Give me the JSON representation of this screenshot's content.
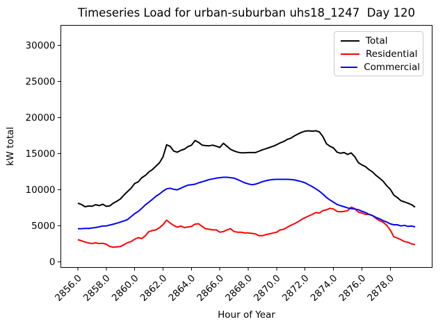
{
  "chart_data": {
    "type": "line",
    "title": "Timeseries Load for urban-suburban uhs18_1247  Day 120",
    "xlabel": "Hour of Year",
    "ylabel": "kW total",
    "grid": false,
    "legend_position": "upper right",
    "xlim": [
      2854.8,
      2880.95
    ],
    "ylim": [
      -750,
      32800
    ],
    "x_ticks": [
      2856,
      2858,
      2860,
      2862,
      2864,
      2866,
      2868,
      2870,
      2872,
      2874,
      2876,
      2878
    ],
    "x_tick_labels": [
      "2856.0",
      "2858.0",
      "2860.0",
      "2862.0",
      "2864.0",
      "2866.0",
      "2868.0",
      "2870.0",
      "2872.0",
      "2874.0",
      "2876.0",
      "2878.0"
    ],
    "y_ticks": [
      0,
      5000,
      10000,
      15000,
      20000,
      25000,
      30000
    ],
    "y_tick_labels": [
      "0",
      "5000",
      "10000",
      "15000",
      "20000",
      "25000",
      "30000"
    ],
    "x": [
      2856.0,
      2856.25,
      2856.5,
      2856.75,
      2857.0,
      2857.25,
      2857.5,
      2857.75,
      2858.0,
      2858.25,
      2858.5,
      2858.75,
      2859.0,
      2859.25,
      2859.5,
      2859.75,
      2860.0,
      2860.25,
      2860.5,
      2860.75,
      2861.0,
      2861.25,
      2861.5,
      2861.75,
      2862.0,
      2862.25,
      2862.5,
      2862.75,
      2863.0,
      2863.25,
      2863.5,
      2863.75,
      2864.0,
      2864.25,
      2864.5,
      2864.75,
      2865.0,
      2865.25,
      2865.5,
      2865.75,
      2866.0,
      2866.25,
      2866.5,
      2866.75,
      2867.0,
      2867.25,
      2867.5,
      2867.75,
      2868.0,
      2868.25,
      2868.5,
      2868.75,
      2869.0,
      2869.25,
      2869.5,
      2869.75,
      2870.0,
      2870.25,
      2870.5,
      2870.75,
      2871.0,
      2871.25,
      2871.5,
      2871.75,
      2872.0,
      2872.25,
      2872.5,
      2872.75,
      2873.0,
      2873.25,
      2873.5,
      2873.75,
      2874.0,
      2874.25,
      2874.5,
      2874.75,
      2875.0,
      2875.25,
      2875.5,
      2875.75,
      2876.0,
      2876.25,
      2876.5,
      2876.75,
      2877.0,
      2877.25,
      2877.5,
      2877.75,
      2878.0,
      2878.25,
      2878.5,
      2878.75,
      2879.0,
      2879.25,
      2879.5,
      2879.75
    ],
    "series": [
      {
        "name": "Total",
        "color": "#000000",
        "values": [
          8150,
          7980,
          7660,
          7760,
          7730,
          7950,
          7820,
          8010,
          7720,
          7790,
          8170,
          8430,
          8750,
          9300,
          9780,
          10240,
          10880,
          11110,
          11690,
          12000,
          12490,
          12810,
          13290,
          13770,
          14580,
          16250,
          16030,
          15380,
          15220,
          15480,
          15640,
          16000,
          16190,
          16840,
          16580,
          16200,
          16130,
          16100,
          16200,
          16040,
          15880,
          16460,
          16040,
          15620,
          15390,
          15230,
          15130,
          15130,
          15170,
          15170,
          15170,
          15350,
          15550,
          15710,
          15880,
          16040,
          16260,
          16520,
          16700,
          17000,
          17160,
          17480,
          17740,
          17970,
          18130,
          18190,
          18130,
          18190,
          18030,
          17400,
          16400,
          16040,
          15810,
          15230,
          15070,
          15170,
          14910,
          15120,
          14590,
          13780,
          13460,
          13230,
          12810,
          12490,
          12010,
          11620,
          11200,
          10570,
          10080,
          9280,
          8920,
          8500,
          8330,
          8150,
          7950,
          7600
        ]
      },
      {
        "name": "Residential",
        "color": "#ff0000",
        "values": [
          3100,
          2950,
          2780,
          2640,
          2570,
          2660,
          2570,
          2600,
          2470,
          2150,
          2050,
          2100,
          2150,
          2400,
          2680,
          2840,
          3160,
          3380,
          3250,
          3640,
          4220,
          4350,
          4450,
          4770,
          5180,
          5800,
          5410,
          5090,
          4830,
          4990,
          4770,
          4860,
          4930,
          5250,
          5310,
          4930,
          4610,
          4540,
          4450,
          4450,
          4130,
          4220,
          4450,
          4610,
          4220,
          4130,
          4130,
          4030,
          4030,
          3970,
          3900,
          3650,
          3650,
          3810,
          3900,
          4030,
          4130,
          4450,
          4540,
          4830,
          5090,
          5310,
          5570,
          5890,
          6140,
          6370,
          6590,
          6850,
          6790,
          7110,
          7240,
          7440,
          7340,
          7020,
          6960,
          7020,
          7120,
          7600,
          7400,
          6920,
          6790,
          6600,
          6600,
          6440,
          6050,
          5730,
          5510,
          5090,
          4440,
          3500,
          3320,
          3100,
          2840,
          2740,
          2520,
          2400
        ]
      },
      {
        "name": "Commercial",
        "color": "#0000ff",
        "values": [
          4600,
          4620,
          4650,
          4650,
          4720,
          4780,
          4870,
          5000,
          5000,
          5120,
          5250,
          5380,
          5540,
          5700,
          5890,
          6310,
          6700,
          7020,
          7440,
          7920,
          8300,
          8690,
          9110,
          9430,
          9820,
          10140,
          10230,
          10070,
          10010,
          10230,
          10460,
          10650,
          10720,
          10790,
          10980,
          11110,
          11270,
          11430,
          11530,
          11620,
          11690,
          11750,
          11750,
          11690,
          11620,
          11430,
          11210,
          10980,
          10820,
          10720,
          10790,
          10950,
          11140,
          11270,
          11370,
          11430,
          11460,
          11460,
          11460,
          11460,
          11430,
          11370,
          11270,
          11140,
          10980,
          10720,
          10460,
          10140,
          9820,
          9430,
          8950,
          8600,
          8300,
          7980,
          7820,
          7660,
          7500,
          7400,
          7340,
          7250,
          7050,
          6860,
          6600,
          6440,
          6180,
          5990,
          5730,
          5540,
          5300,
          5160,
          5160,
          5000,
          5090,
          4930,
          5000,
          4870
        ]
      }
    ]
  }
}
